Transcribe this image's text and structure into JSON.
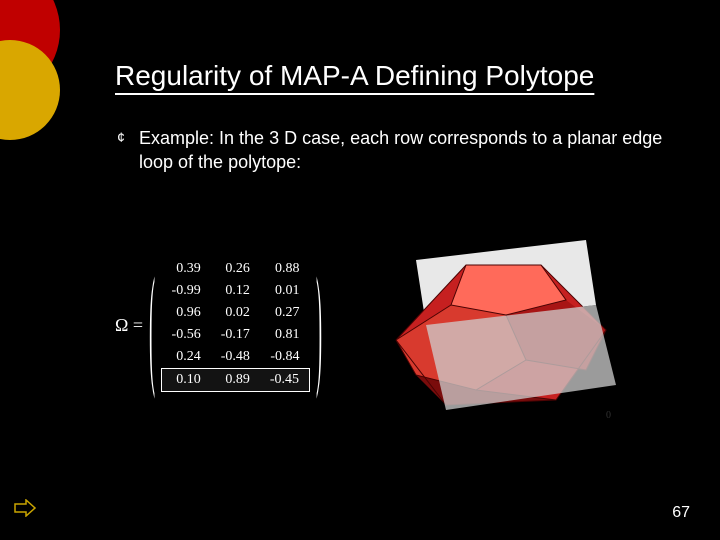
{
  "title": "Regularity of MAP-A Defining Polytope",
  "bullet_glyph": "¢",
  "body": "Example: In the 3 D case, each row corresponds to a planar edge loop of the polytope:",
  "matrix": {
    "label": "Ω =",
    "left_bracket": "(",
    "right_bracket": ")",
    "rows": [
      [
        "0.39",
        "0.26",
        "0.88"
      ],
      [
        "-0.99",
        "0.12",
        "0.01"
      ],
      [
        "0.96",
        "0.02",
        "0.27"
      ],
      [
        "-0.56",
        "-0.17",
        "0.81"
      ],
      [
        "0.24",
        "-0.48",
        "-0.84"
      ],
      [
        "0.10",
        "0.89",
        "-0.45"
      ]
    ],
    "highlight_row_index": 5
  },
  "polytope": {
    "body_color": "#c62020",
    "body_highlight": "#ff6a5a",
    "body_shadow": "#7a0c0c",
    "plane_color": "#e8e8e8",
    "plane_shadow": "#cfcfcf"
  },
  "page_number": "67",
  "deco": {
    "red": "#c00000",
    "yellow": "#d9a700"
  },
  "arrow_stroke": "#c9a400"
}
